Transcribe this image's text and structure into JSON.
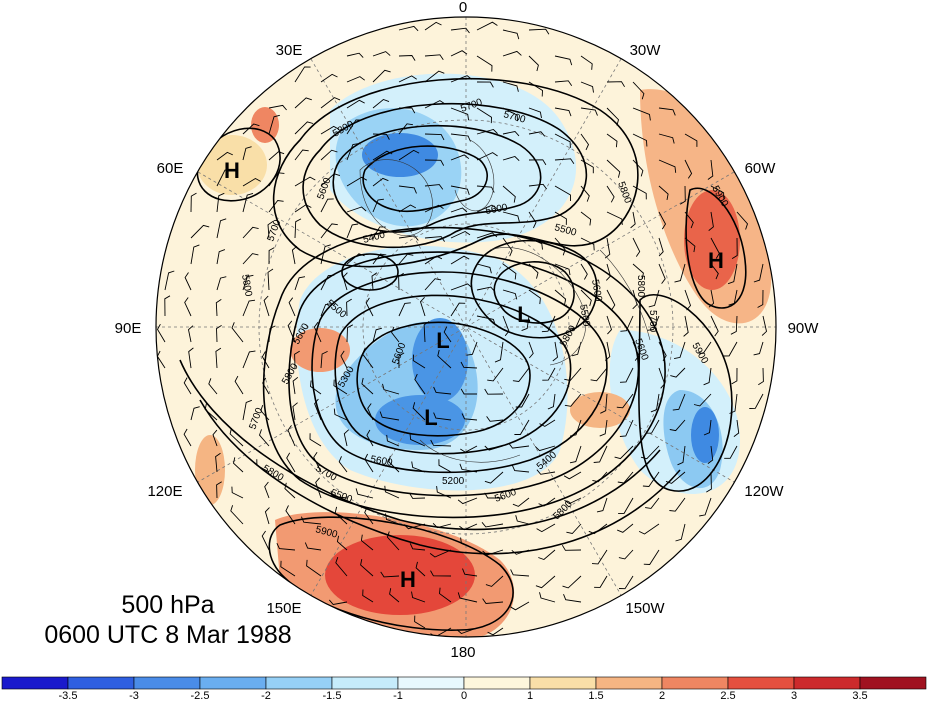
{
  "title": {
    "level": "500 hPa",
    "time": "0600 UTC 8 Mar 1988"
  },
  "longitude_labels": [
    "0",
    "30W",
    "60W",
    "90W",
    "120W",
    "150W",
    "180",
    "150E",
    "120E",
    "90E",
    "60E",
    "30E"
  ],
  "contour_labels": [
    "5700",
    "5700",
    "5800",
    "5800",
    "5900",
    "5600",
    "5500",
    "5400",
    "5700",
    "5800",
    "5600",
    "5500",
    "5800",
    "5600",
    "5500",
    "5700",
    "5900",
    "5600",
    "5600",
    "5800",
    "5700",
    "5800",
    "5800",
    "5300",
    "5600",
    "5700",
    "5200",
    "5400",
    "5600",
    "5800",
    "5900",
    "5500",
    "5600"
  ],
  "pressure_centers": [
    "H",
    "H",
    "H",
    "L",
    "L",
    "L"
  ],
  "colorbar": {
    "ticks": [
      "-3.5",
      "-3",
      "-2.5",
      "-2",
      "-1.5",
      "-1",
      "0",
      "1",
      "1.5",
      "2",
      "2.5",
      "3",
      "3.5"
    ],
    "colors": [
      "#1a1acc",
      "#2f5fe0",
      "#4a8ce8",
      "#6aaef0",
      "#96d0f6",
      "#c6ecfb",
      "#e8f8fd",
      "#fdf6dc",
      "#f9dfa8",
      "#f5b583",
      "#ef8662",
      "#e4503f",
      "#cc2a2c",
      "#a01220"
    ]
  }
}
